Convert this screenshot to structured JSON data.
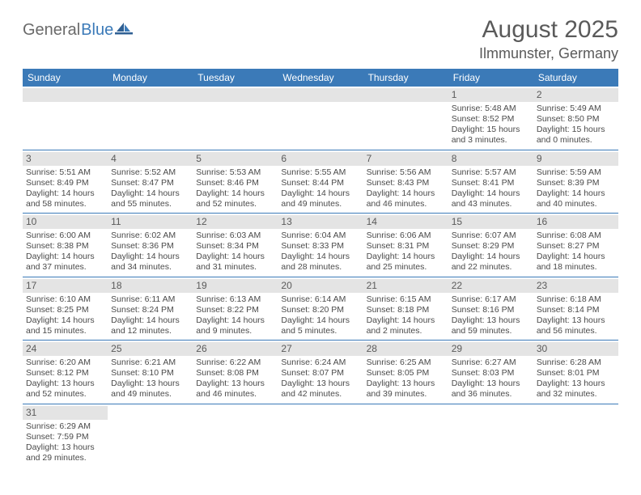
{
  "logo": {
    "text1": "General",
    "text2": "Blue"
  },
  "title": "August 2025",
  "location": "Ilmmunster, Germany",
  "colors": {
    "header_bg": "#3b7ab8",
    "daynum_bg": "#e4e4e4",
    "text": "#4a4a4a",
    "border": "#3b7ab8"
  },
  "weekdays": [
    "Sunday",
    "Monday",
    "Tuesday",
    "Wednesday",
    "Thursday",
    "Friday",
    "Saturday"
  ],
  "weeks": [
    [
      {
        "empty": true
      },
      {
        "empty": true
      },
      {
        "empty": true
      },
      {
        "empty": true
      },
      {
        "empty": true
      },
      {
        "num": "1",
        "sunrise": "Sunrise: 5:48 AM",
        "sunset": "Sunset: 8:52 PM",
        "daylight1": "Daylight: 15 hours",
        "daylight2": "and 3 minutes."
      },
      {
        "num": "2",
        "sunrise": "Sunrise: 5:49 AM",
        "sunset": "Sunset: 8:50 PM",
        "daylight1": "Daylight: 15 hours",
        "daylight2": "and 0 minutes."
      }
    ],
    [
      {
        "num": "3",
        "sunrise": "Sunrise: 5:51 AM",
        "sunset": "Sunset: 8:49 PM",
        "daylight1": "Daylight: 14 hours",
        "daylight2": "and 58 minutes."
      },
      {
        "num": "4",
        "sunrise": "Sunrise: 5:52 AM",
        "sunset": "Sunset: 8:47 PM",
        "daylight1": "Daylight: 14 hours",
        "daylight2": "and 55 minutes."
      },
      {
        "num": "5",
        "sunrise": "Sunrise: 5:53 AM",
        "sunset": "Sunset: 8:46 PM",
        "daylight1": "Daylight: 14 hours",
        "daylight2": "and 52 minutes."
      },
      {
        "num": "6",
        "sunrise": "Sunrise: 5:55 AM",
        "sunset": "Sunset: 8:44 PM",
        "daylight1": "Daylight: 14 hours",
        "daylight2": "and 49 minutes."
      },
      {
        "num": "7",
        "sunrise": "Sunrise: 5:56 AM",
        "sunset": "Sunset: 8:43 PM",
        "daylight1": "Daylight: 14 hours",
        "daylight2": "and 46 minutes."
      },
      {
        "num": "8",
        "sunrise": "Sunrise: 5:57 AM",
        "sunset": "Sunset: 8:41 PM",
        "daylight1": "Daylight: 14 hours",
        "daylight2": "and 43 minutes."
      },
      {
        "num": "9",
        "sunrise": "Sunrise: 5:59 AM",
        "sunset": "Sunset: 8:39 PM",
        "daylight1": "Daylight: 14 hours",
        "daylight2": "and 40 minutes."
      }
    ],
    [
      {
        "num": "10",
        "sunrise": "Sunrise: 6:00 AM",
        "sunset": "Sunset: 8:38 PM",
        "daylight1": "Daylight: 14 hours",
        "daylight2": "and 37 minutes."
      },
      {
        "num": "11",
        "sunrise": "Sunrise: 6:02 AM",
        "sunset": "Sunset: 8:36 PM",
        "daylight1": "Daylight: 14 hours",
        "daylight2": "and 34 minutes."
      },
      {
        "num": "12",
        "sunrise": "Sunrise: 6:03 AM",
        "sunset": "Sunset: 8:34 PM",
        "daylight1": "Daylight: 14 hours",
        "daylight2": "and 31 minutes."
      },
      {
        "num": "13",
        "sunrise": "Sunrise: 6:04 AM",
        "sunset": "Sunset: 8:33 PM",
        "daylight1": "Daylight: 14 hours",
        "daylight2": "and 28 minutes."
      },
      {
        "num": "14",
        "sunrise": "Sunrise: 6:06 AM",
        "sunset": "Sunset: 8:31 PM",
        "daylight1": "Daylight: 14 hours",
        "daylight2": "and 25 minutes."
      },
      {
        "num": "15",
        "sunrise": "Sunrise: 6:07 AM",
        "sunset": "Sunset: 8:29 PM",
        "daylight1": "Daylight: 14 hours",
        "daylight2": "and 22 minutes."
      },
      {
        "num": "16",
        "sunrise": "Sunrise: 6:08 AM",
        "sunset": "Sunset: 8:27 PM",
        "daylight1": "Daylight: 14 hours",
        "daylight2": "and 18 minutes."
      }
    ],
    [
      {
        "num": "17",
        "sunrise": "Sunrise: 6:10 AM",
        "sunset": "Sunset: 8:25 PM",
        "daylight1": "Daylight: 14 hours",
        "daylight2": "and 15 minutes."
      },
      {
        "num": "18",
        "sunrise": "Sunrise: 6:11 AM",
        "sunset": "Sunset: 8:24 PM",
        "daylight1": "Daylight: 14 hours",
        "daylight2": "and 12 minutes."
      },
      {
        "num": "19",
        "sunrise": "Sunrise: 6:13 AM",
        "sunset": "Sunset: 8:22 PM",
        "daylight1": "Daylight: 14 hours",
        "daylight2": "and 9 minutes."
      },
      {
        "num": "20",
        "sunrise": "Sunrise: 6:14 AM",
        "sunset": "Sunset: 8:20 PM",
        "daylight1": "Daylight: 14 hours",
        "daylight2": "and 5 minutes."
      },
      {
        "num": "21",
        "sunrise": "Sunrise: 6:15 AM",
        "sunset": "Sunset: 8:18 PM",
        "daylight1": "Daylight: 14 hours",
        "daylight2": "and 2 minutes."
      },
      {
        "num": "22",
        "sunrise": "Sunrise: 6:17 AM",
        "sunset": "Sunset: 8:16 PM",
        "daylight1": "Daylight: 13 hours",
        "daylight2": "and 59 minutes."
      },
      {
        "num": "23",
        "sunrise": "Sunrise: 6:18 AM",
        "sunset": "Sunset: 8:14 PM",
        "daylight1": "Daylight: 13 hours",
        "daylight2": "and 56 minutes."
      }
    ],
    [
      {
        "num": "24",
        "sunrise": "Sunrise: 6:20 AM",
        "sunset": "Sunset: 8:12 PM",
        "daylight1": "Daylight: 13 hours",
        "daylight2": "and 52 minutes."
      },
      {
        "num": "25",
        "sunrise": "Sunrise: 6:21 AM",
        "sunset": "Sunset: 8:10 PM",
        "daylight1": "Daylight: 13 hours",
        "daylight2": "and 49 minutes."
      },
      {
        "num": "26",
        "sunrise": "Sunrise: 6:22 AM",
        "sunset": "Sunset: 8:08 PM",
        "daylight1": "Daylight: 13 hours",
        "daylight2": "and 46 minutes."
      },
      {
        "num": "27",
        "sunrise": "Sunrise: 6:24 AM",
        "sunset": "Sunset: 8:07 PM",
        "daylight1": "Daylight: 13 hours",
        "daylight2": "and 42 minutes."
      },
      {
        "num": "28",
        "sunrise": "Sunrise: 6:25 AM",
        "sunset": "Sunset: 8:05 PM",
        "daylight1": "Daylight: 13 hours",
        "daylight2": "and 39 minutes."
      },
      {
        "num": "29",
        "sunrise": "Sunrise: 6:27 AM",
        "sunset": "Sunset: 8:03 PM",
        "daylight1": "Daylight: 13 hours",
        "daylight2": "and 36 minutes."
      },
      {
        "num": "30",
        "sunrise": "Sunrise: 6:28 AM",
        "sunset": "Sunset: 8:01 PM",
        "daylight1": "Daylight: 13 hours",
        "daylight2": "and 32 minutes."
      }
    ],
    [
      {
        "num": "31",
        "sunrise": "Sunrise: 6:29 AM",
        "sunset": "Sunset: 7:59 PM",
        "daylight1": "Daylight: 13 hours",
        "daylight2": "and 29 minutes."
      },
      {
        "empty": true
      },
      {
        "empty": true
      },
      {
        "empty": true
      },
      {
        "empty": true
      },
      {
        "empty": true
      },
      {
        "empty": true
      }
    ]
  ]
}
